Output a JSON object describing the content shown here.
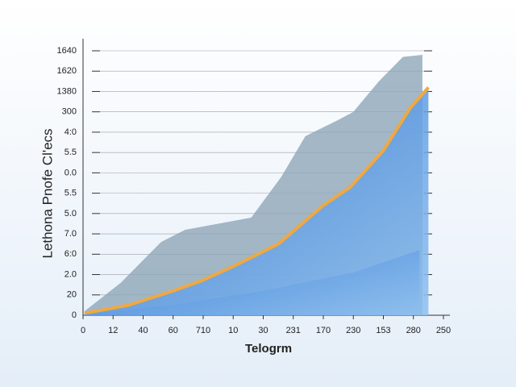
{
  "chart_data": {
    "type": "area",
    "y_label": "Lethona Pnofe Cl'ecs",
    "x_label": "Telogrm",
    "xlim": [
      0,
      12
    ],
    "ylim": [
      0,
      13.5
    ],
    "xticks": [
      0,
      {
        "value": 1,
        "label": "12"
      },
      {
        "value": 2,
        "label": "40"
      },
      {
        "value": 3,
        "label": "60"
      },
      {
        "value": 4,
        "label": "710"
      },
      {
        "value": 5,
        "label": "10"
      },
      {
        "value": 6,
        "label": "30"
      },
      {
        "value": 7,
        "label": "231"
      },
      {
        "value": 8,
        "label": "170"
      },
      {
        "value": 9,
        "label": "230"
      },
      {
        "value": 10,
        "label": "153"
      },
      {
        "value": 11,
        "label": "280"
      },
      {
        "value": 12,
        "label": "250"
      }
    ],
    "yticks": [
      0,
      {
        "value": 1,
        "label": "20"
      },
      {
        "value": 2,
        "label": "2.0"
      },
      {
        "value": 3,
        "label": "6:0"
      },
      {
        "value": 4,
        "label": "7.0"
      },
      {
        "value": 5,
        "label": "5.0"
      },
      {
        "value": 6,
        "label": "5.5"
      },
      {
        "value": 7,
        "label": "0.0"
      },
      {
        "value": 8,
        "label": "5.5"
      },
      {
        "value": 9,
        "label": "4:0"
      },
      {
        "value": 10,
        "label": "300"
      },
      {
        "value": 11,
        "label": "1380"
      },
      {
        "value": 12,
        "label": "1620"
      },
      {
        "value": 13,
        "label": "1640"
      }
    ],
    "grid": true,
    "series": [
      {
        "type": "area",
        "color": "#8fa6b8",
        "x": [
          0.05,
          1.26,
          2.6,
          3.4,
          4.5,
          5.6,
          6.6,
          7.4,
          8.5,
          9.0,
          9.85,
          10.65,
          11.3
        ],
        "values": [
          0.2,
          1.6,
          3.6,
          4.2,
          4.5,
          4.8,
          6.8,
          8.8,
          9.6,
          10.0,
          11.5,
          12.7,
          12.8
        ]
      },
      {
        "type": "line",
        "color": "#f0a840",
        "x": [
          0.05,
          1.53,
          3.0,
          3.95,
          5.0,
          6.5,
          8.0,
          8.9,
          10.0,
          10.9,
          11.5
        ],
        "values": [
          0.1,
          0.5,
          1.2,
          1.7,
          2.4,
          3.5,
          5.4,
          6.3,
          8.1,
          10.2,
          11.2
        ]
      },
      {
        "type": "area",
        "color": "#6aa0dc",
        "x": [
          0.05,
          3.0,
          6.0,
          9.0,
          11.2
        ],
        "values": [
          0.05,
          0.5,
          1.2,
          2.1,
          3.2
        ]
      }
    ]
  }
}
